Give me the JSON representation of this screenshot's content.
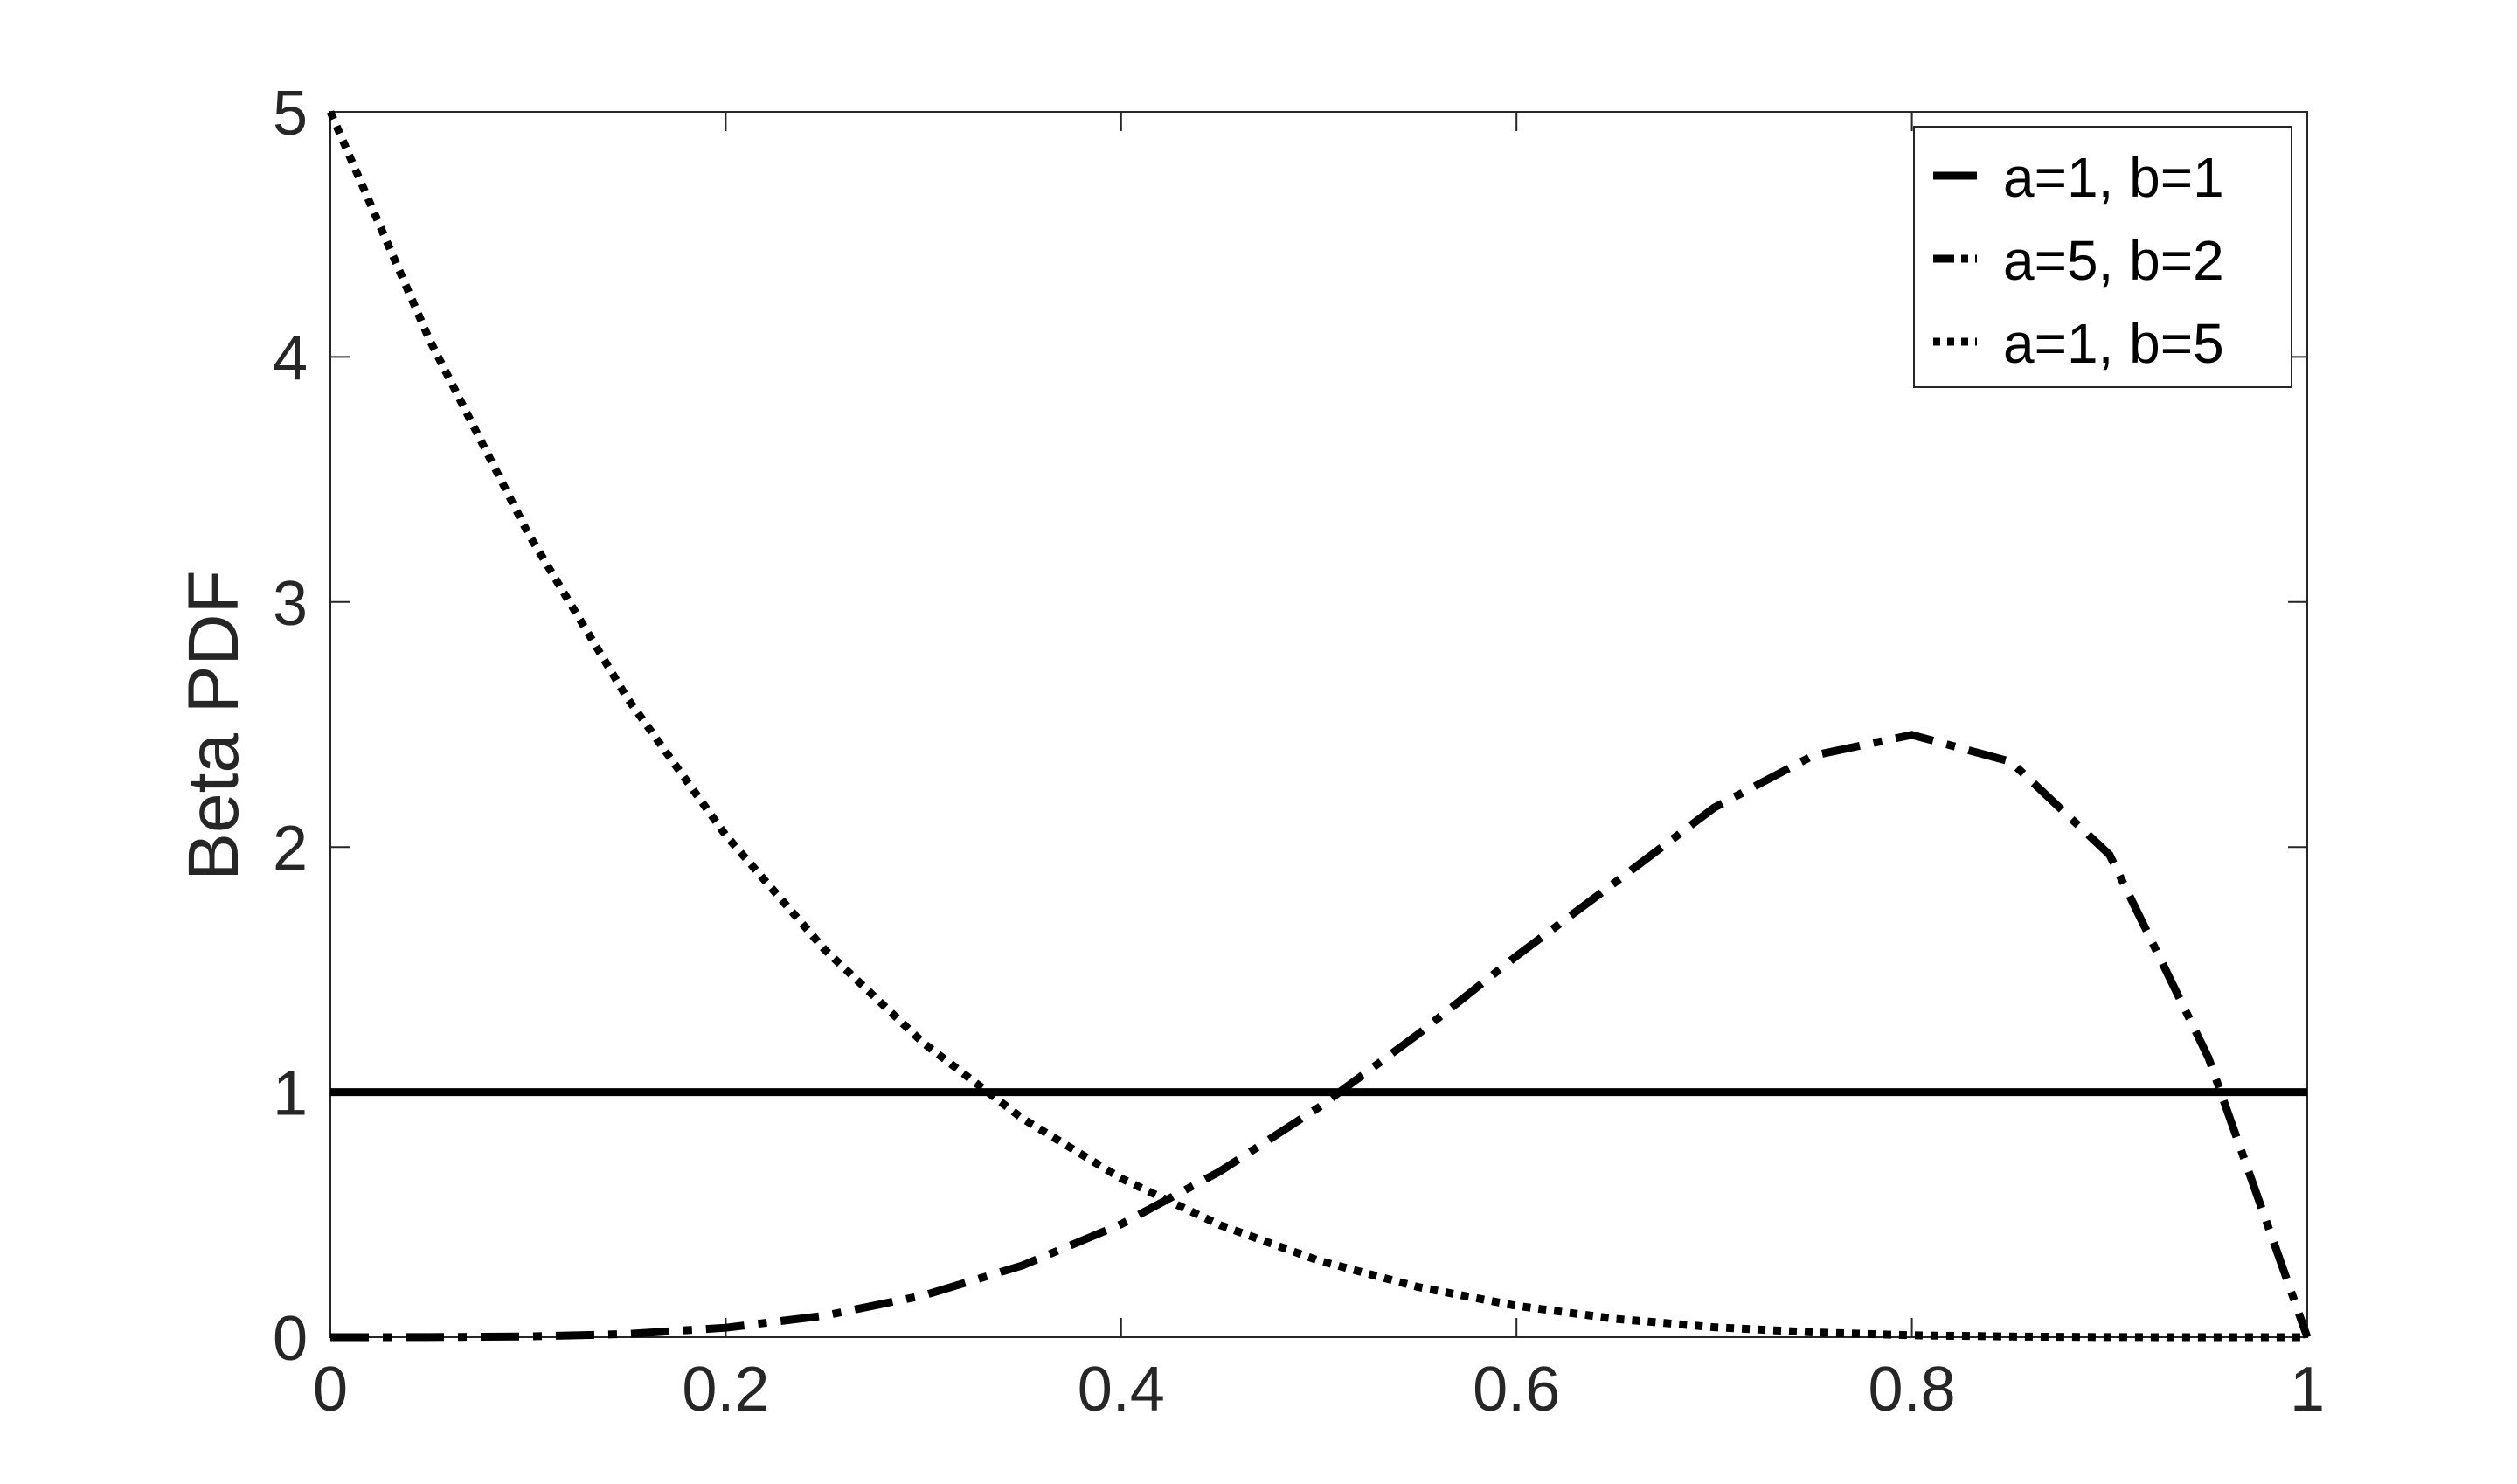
{
  "chart_data": {
    "type": "line",
    "title": "",
    "xlabel": "",
    "ylabel": "Beta PDF",
    "xlim": [
      0,
      1
    ],
    "ylim": [
      0,
      5
    ],
    "x_ticks": [
      0,
      0.2,
      0.4,
      0.6,
      0.8,
      1
    ],
    "x_tick_labels": [
      "0",
      "0.2",
      "0.4",
      "0.6",
      "0.8",
      "1"
    ],
    "y_ticks": [
      0,
      1,
      2,
      3,
      4,
      5
    ],
    "y_tick_labels": [
      "0",
      "1",
      "2",
      "3",
      "4",
      "5"
    ],
    "grid": false,
    "legend_position": "top-right",
    "x": [
      0,
      0.05,
      0.1,
      0.15,
      0.2,
      0.25,
      0.3,
      0.35,
      0.4,
      0.45,
      0.5,
      0.55,
      0.6,
      0.65,
      0.7,
      0.75,
      0.8,
      0.85,
      0.9,
      0.95,
      1
    ],
    "series": [
      {
        "name": "a=1, b=1",
        "line_style": "solid",
        "values": [
          1,
          1,
          1,
          1,
          1,
          1,
          1,
          1,
          1,
          1,
          1,
          1,
          1,
          1,
          1,
          1,
          1,
          1,
          1,
          1,
          1
        ]
      },
      {
        "name": "a=5, b=2",
        "line_style": "dashdot",
        "values": [
          0,
          0.0002,
          0.0027,
          0.0129,
          0.0384,
          0.0879,
          0.1701,
          0.2926,
          0.4608,
          0.6766,
          0.9375,
          1.2353,
          1.5552,
          1.8562,
          2.1609,
          2.373,
          2.4576,
          2.3486,
          1.9683,
          1.1408,
          0
        ]
      },
      {
        "name": "a=1, b=5",
        "line_style": "dotted",
        "values": [
          5,
          4.0725,
          3.2805,
          2.61,
          2.048,
          1.582,
          1.2005,
          0.8925,
          0.648,
          0.4575,
          0.3125,
          0.205,
          0.128,
          0.075,
          0.0405,
          0.0195,
          0.008,
          0.0025,
          0.0005,
          3e-05,
          0
        ]
      }
    ]
  }
}
